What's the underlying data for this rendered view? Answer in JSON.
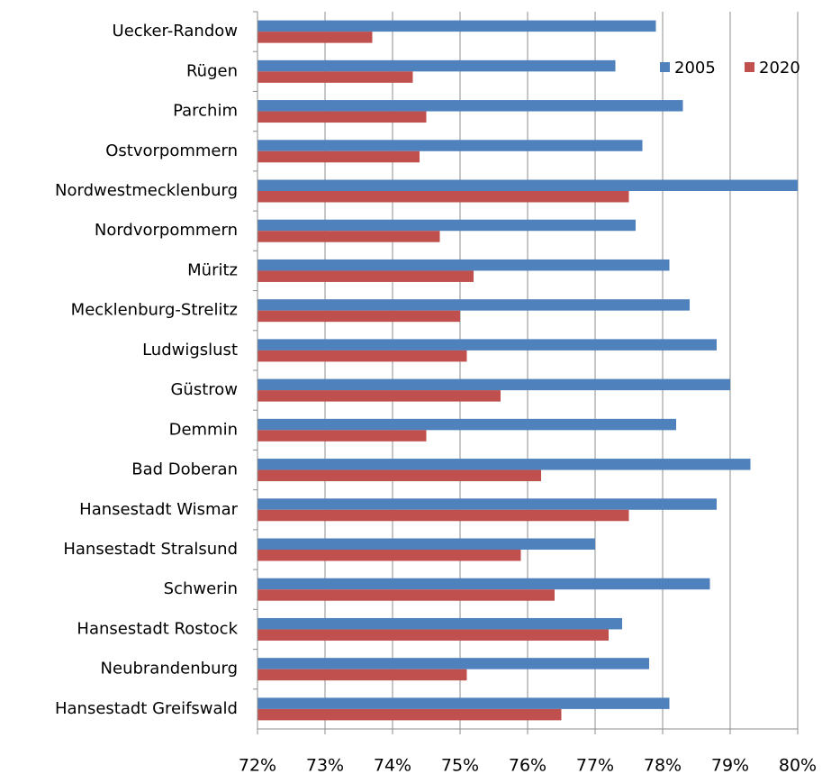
{
  "chart_data": {
    "type": "bar",
    "orientation": "horizontal",
    "categories": [
      "Uecker-Randow",
      "Rügen",
      "Parchim",
      "Ostvorpommern",
      "Nordwestmecklenburg",
      "Nordvorpommern",
      "Müritz",
      "Mecklenburg-Strelitz",
      "Ludwigslust",
      "Güstrow",
      "Demmin",
      "Bad Doberan",
      "Hansestadt Wismar",
      "Hansestadt Stralsund",
      "Schwerin",
      "Hansestadt Rostock",
      "Neubrandenburg",
      "Hansestadt Greifswald"
    ],
    "series": [
      {
        "name": "2005",
        "color": "#4f81bd",
        "values": [
          77.9,
          77.3,
          78.3,
          77.7,
          80.0,
          77.6,
          78.1,
          78.4,
          78.8,
          79.0,
          78.2,
          79.3,
          78.8,
          77.0,
          78.7,
          77.4,
          77.8,
          78.1
        ]
      },
      {
        "name": "2020",
        "color": "#c0504d",
        "values": [
          73.7,
          74.3,
          74.5,
          74.4,
          77.5,
          74.7,
          75.2,
          75.0,
          75.1,
          75.6,
          74.5,
          76.2,
          77.5,
          75.9,
          76.4,
          77.2,
          75.1,
          76.5
        ]
      }
    ],
    "xlim": [
      72,
      80
    ],
    "xticks": [
      {
        "value": 72,
        "label": "72%"
      },
      {
        "value": 73,
        "label": "73%"
      },
      {
        "value": 74,
        "label": "74%"
      },
      {
        "value": 75,
        "label": "75%"
      },
      {
        "value": 76,
        "label": "76%"
      },
      {
        "value": 77,
        "label": "77%"
      },
      {
        "value": 78,
        "label": "78%"
      },
      {
        "value": 79,
        "label": "79%"
      },
      {
        "value": 80,
        "label": "80%"
      }
    ],
    "grid": true,
    "legend": "upper right"
  }
}
